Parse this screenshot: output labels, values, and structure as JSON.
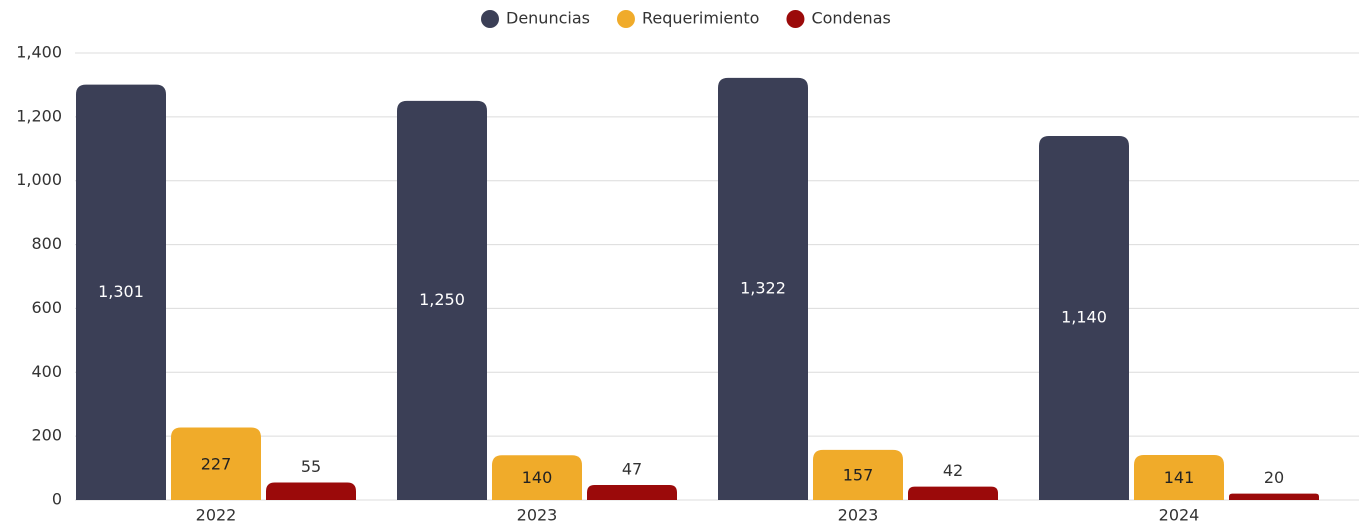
{
  "chart_data": {
    "type": "bar",
    "categories": [
      "2022",
      "2023",
      "2023",
      "2024"
    ],
    "series": [
      {
        "name": "Denuncias",
        "color": "#3b3f56",
        "values": [
          1301,
          1250,
          1322,
          1140
        ],
        "value_labels": [
          "1,301",
          "1,250",
          "1,322",
          "1,140"
        ]
      },
      {
        "name": "Requerimiento",
        "color": "#f0ab2a",
        "values": [
          227,
          140,
          157,
          141
        ]
      },
      {
        "name": "Condenas",
        "color": "#9b0a0a",
        "values": [
          55,
          47,
          42,
          20
        ]
      }
    ],
    "ylim": [
      0,
      1400
    ],
    "yticks": [
      0,
      200,
      400,
      600,
      800,
      {
        "value": 1000,
        "label": "1,000"
      },
      {
        "value": 1200,
        "label": "1,200"
      },
      {
        "value": 1400,
        "label": "1,400"
      }
    ],
    "grid": true,
    "legend": "top"
  }
}
